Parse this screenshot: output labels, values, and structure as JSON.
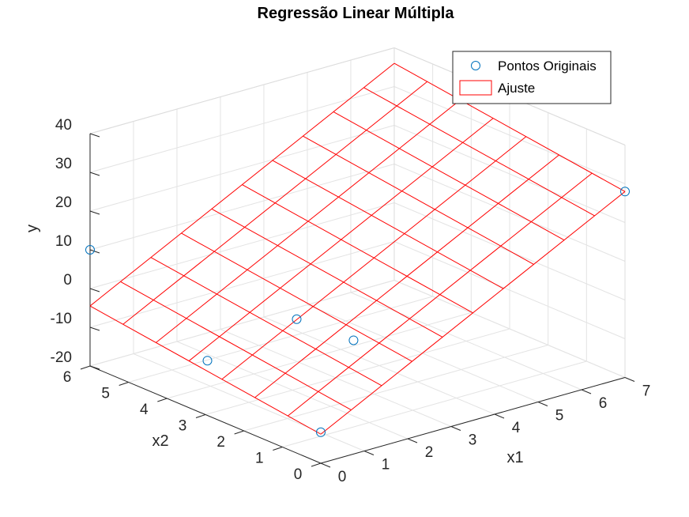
{
  "chart_data": {
    "type": "scatter3d-surface",
    "title": "Regressão Linear Múltipla",
    "xlabel": "x1",
    "ylabel": "x2",
    "zlabel": "y",
    "xlim": [
      0,
      7
    ],
    "ylim": [
      0,
      6
    ],
    "zlim": [
      -20,
      40
    ],
    "xticks": [
      "0",
      "1",
      "2",
      "3",
      "4",
      "5",
      "6",
      "7"
    ],
    "yticks": [
      "0",
      "1",
      "2",
      "3",
      "4",
      "5",
      "6"
    ],
    "zticks": [
      "-20",
      "-10",
      "0",
      "10",
      "20",
      "30",
      "40"
    ],
    "grid": true,
    "legend": {
      "position": "top-right",
      "entries": [
        "Pontos Originais",
        "Ajuste"
      ]
    },
    "colors": {
      "points": "#0072bd",
      "surface": "#ff0000",
      "grid": "#e3e3e3",
      "axis": "#262626"
    },
    "series": [
      {
        "name": "Pontos Originais",
        "type": "scatter",
        "points": [
          {
            "x1": 0.0,
            "x2": 6.0,
            "y": 10.0
          },
          {
            "x1": 7.0,
            "x2": 0.0,
            "y": 28.0
          },
          {
            "x1": 0.0,
            "x2": 0.0,
            "y": -12.0
          },
          {
            "x1": 2.1,
            "x2": 3.0,
            "y": -2.0
          },
          {
            "x1": 2.7,
            "x2": 2.2,
            "y": -6.0
          },
          {
            "x1": 0.4,
            "x2": 3.4,
            "y": -9.0
          }
        ]
      },
      {
        "name": "Ajuste",
        "type": "surface",
        "x1_range": [
          0,
          7
        ],
        "x2_range": [
          0,
          6
        ],
        "x1_divisions": 10,
        "x2_divisions": 7,
        "corner_values": [
          {
            "x1": 0,
            "x2": 0,
            "y": -12.5
          },
          {
            "x1": 7,
            "x2": 0,
            "y": 28.0
          },
          {
            "x1": 0,
            "x2": 6,
            "y": -4.5
          },
          {
            "x1": 7,
            "x2": 6,
            "y": 36.5
          }
        ]
      }
    ]
  }
}
